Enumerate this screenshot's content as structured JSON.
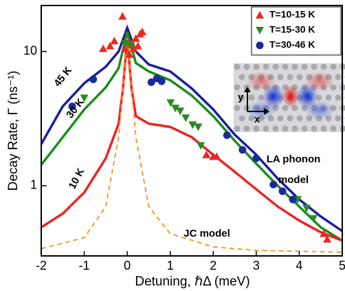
{
  "chart_data": {
    "type": "scatter",
    "xlabel": "Detuning, ℏΔ (meV)",
    "ylabel": "Decay Rate, Γ (ns⁻¹)",
    "xlim": [
      -2,
      5
    ],
    "xticks": [
      -2,
      -1,
      0,
      1,
      2,
      3,
      4,
      5
    ],
    "ylim": [
      0.3,
      22
    ],
    "yticks": [
      1,
      10
    ],
    "yscale": "log",
    "legend": "upper right",
    "annotations": [
      "LA phonon",
      "model"
    ],
    "inset_axes": [
      "y",
      "x"
    ],
    "series": [
      {
        "name": "T=10-15 K",
        "color": "#e62a22",
        "marker": "^",
        "x": [
          -0.56,
          -0.4,
          -0.3,
          -0.11,
          -0.05,
          0.05,
          0.1,
          0.15,
          0.2,
          0.25,
          0.3,
          0.35,
          1.84,
          2.0,
          2.08,
          4.57,
          4.65
        ],
        "values": [
          10.5,
          11,
          12,
          18.3,
          10.5,
          9.5,
          11.5,
          10.5,
          12.5,
          11,
          13.5,
          14,
          1.7,
          1.65,
          1.65,
          0.44,
          0.4
        ]
      },
      {
        "name": "T=15-30 K",
        "color": "#2a8a22",
        "marker": "v",
        "x": [
          -1.0,
          -0.05,
          0.08,
          1.01,
          1.12,
          1.23,
          1.36,
          1.52,
          1.65,
          1.71,
          3.96,
          4.17,
          4.33
        ],
        "values": [
          4.5,
          11.5,
          11,
          4.15,
          3.78,
          3.6,
          3.2,
          2.84,
          2.74,
          1.99,
          0.79,
          0.68,
          0.57
        ]
      },
      {
        "name": "T=30-46 K",
        "color": "#1c2a9c",
        "marker": "o",
        "x": [
          -1.28,
          -0.79,
          0.56,
          0.69,
          0.8,
          2.32,
          2.68,
          3.0,
          3.4,
          3.61,
          3.85
        ],
        "values": [
          3.9,
          6.2,
          5.9,
          6.3,
          6.0,
          2.38,
          1.85,
          1.6,
          1.02,
          0.91,
          0.79
        ]
      },
      {
        "name": "45 K",
        "color": "#1c1ca0",
        "linestyle": "solid",
        "x": [
          -2,
          -1.5,
          -1,
          -0.5,
          -0.2,
          0,
          0.2,
          0.5,
          1,
          1.5,
          2,
          2.5,
          3,
          3.5,
          4,
          4.5,
          5
        ],
        "values": [
          2.04,
          3.9,
          5.8,
          7.7,
          10,
          15,
          10,
          8,
          7.1,
          5.3,
          3.7,
          2.4,
          1.7,
          1.13,
          0.79,
          0.59,
          0.46
        ]
      },
      {
        "name": "30 K",
        "color": "#1a8c1a",
        "linestyle": "solid",
        "x": [
          -2,
          -1.5,
          -1,
          -0.5,
          -0.2,
          0,
          0.2,
          0.5,
          1,
          1.5,
          2,
          2.5,
          3,
          3.5,
          4,
          4.5,
          5
        ],
        "values": [
          1.43,
          2.3,
          3.7,
          5.4,
          7.5,
          14,
          8.2,
          7.1,
          6.1,
          4.7,
          3.3,
          2.16,
          1.46,
          1.0,
          0.7,
          0.49,
          0.39
        ]
      },
      {
        "name": "10 K",
        "color": "#ee2222",
        "linestyle": "solid",
        "x": [
          -2,
          -1.5,
          -1,
          -0.5,
          -0.2,
          -0.1,
          0,
          0.1,
          0.2,
          0.5,
          1,
          1.5,
          2,
          2.5,
          3,
          3.5,
          4,
          4.5,
          5
        ],
        "values": [
          0.49,
          0.62,
          0.89,
          1.6,
          2.9,
          5.3,
          12.8,
          5.3,
          3.3,
          2.9,
          2.74,
          2.3,
          1.7,
          1.27,
          0.94,
          0.7,
          0.55,
          0.45,
          0.39
        ]
      },
      {
        "name": "JC model",
        "color": "#f39a2c",
        "linestyle": "dashed",
        "x": [
          -2,
          -1,
          -0.5,
          -0.2,
          0,
          0.2,
          0.5,
          1,
          2,
          3,
          5
        ],
        "values": [
          0.34,
          0.41,
          0.7,
          2.3,
          12.8,
          2.3,
          0.7,
          0.44,
          0.35,
          0.33,
          0.32
        ]
      }
    ]
  }
}
